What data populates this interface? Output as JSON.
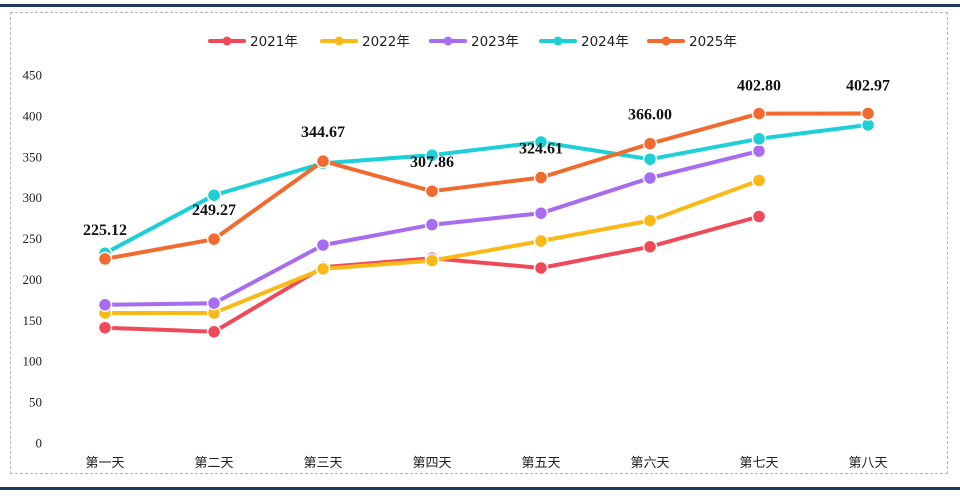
{
  "chart_data": {
    "type": "line",
    "categories": [
      "第一天",
      "第二天",
      "第三天",
      "第四天",
      "第五天",
      "第六天",
      "第七天",
      "第八天"
    ],
    "ylim": [
      0,
      450
    ],
    "yticks": [
      0,
      50,
      100,
      150,
      200,
      250,
      300,
      350,
      400,
      450
    ],
    "grid": false,
    "legend_position": "top-center",
    "series": [
      {
        "name": "2021年",
        "color": "#f04a5a",
        "values": [
          141,
          136,
          215,
          226,
          214,
          240,
          277,
          null
        ]
      },
      {
        "name": "2022年",
        "color": "#fbb917",
        "values": [
          159,
          159,
          213,
          223,
          247,
          272,
          321,
          null
        ]
      },
      {
        "name": "2023年",
        "color": "#a86cf0",
        "values": [
          169,
          171,
          242,
          267,
          281,
          324,
          357,
          null
        ]
      },
      {
        "name": "2024年",
        "color": "#1dcfd6",
        "values": [
          232,
          303,
          342,
          352,
          368,
          347,
          372,
          389
        ]
      },
      {
        "name": "2025年",
        "color": "#f26a2e",
        "values": [
          225.12,
          249.27,
          344.67,
          307.86,
          324.61,
          366.0,
          402.8,
          402.97
        ]
      }
    ],
    "data_labels": [
      "225.12",
      "249.27",
      "344.67",
      "307.86",
      "324.61",
      "366.00",
      "402.80",
      "402.97"
    ]
  }
}
